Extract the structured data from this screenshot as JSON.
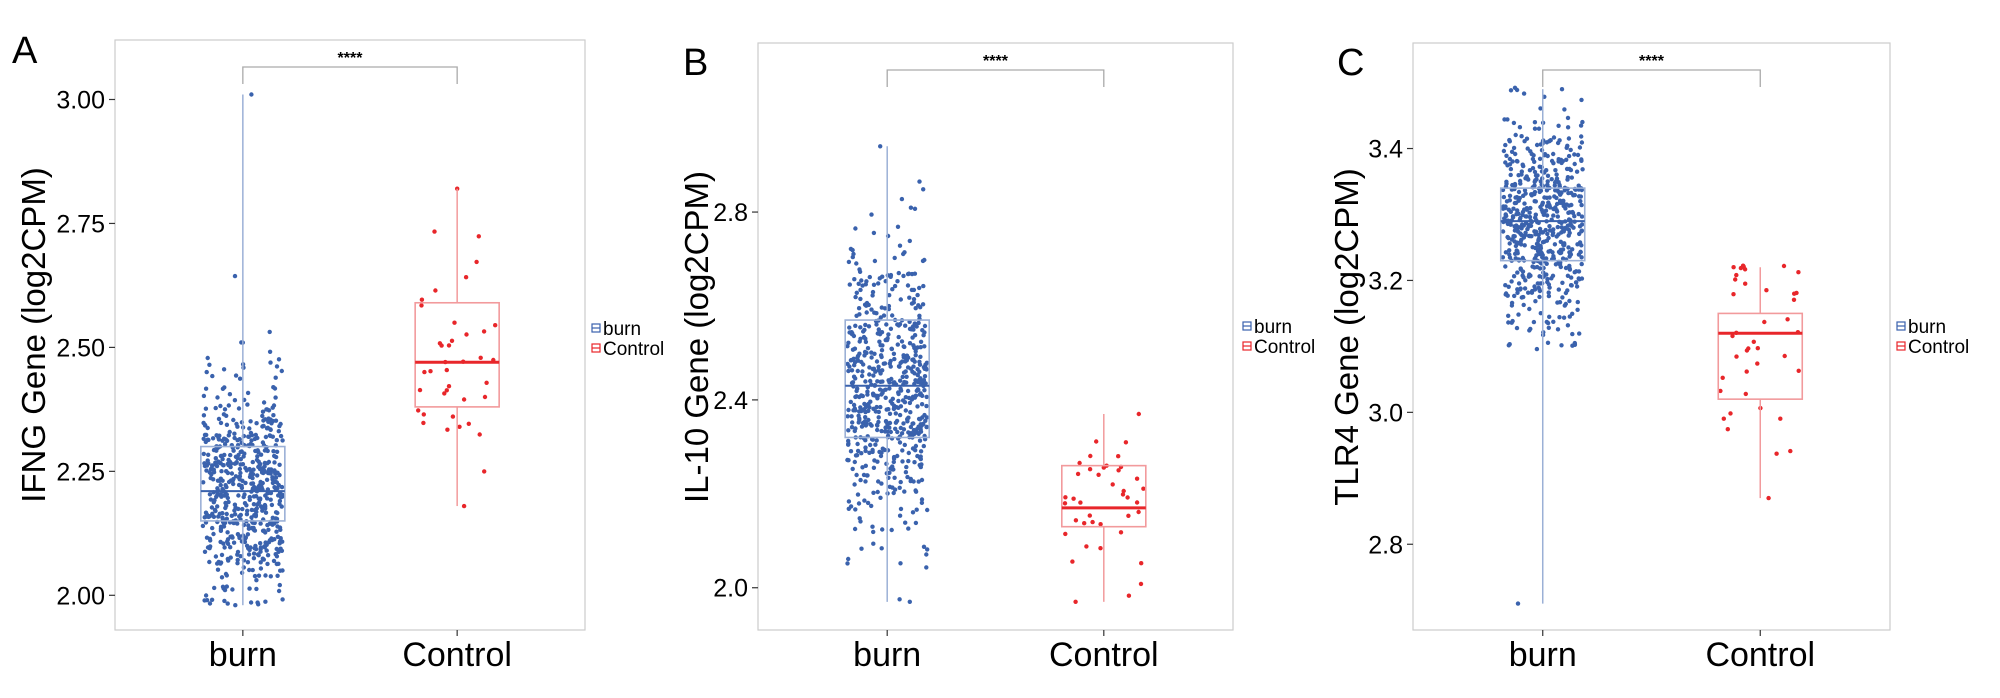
{
  "colors": {
    "burn": "#3a62ad",
    "control": "#e8262a",
    "burn_box": "#9bb0d6",
    "control_box": "#f29a9c",
    "bracket": "#aaaaaa",
    "frame": "#cccccc"
  },
  "chart_data": [
    {
      "type": "box",
      "panel_label": "A",
      "title": "",
      "xlabel": "",
      "ylabel": "IFNG Gene (log2CPM)",
      "categories": [
        "burn",
        "Control"
      ],
      "ylim": [
        1.93,
        3.12
      ],
      "yticks": [
        2.0,
        2.25,
        2.5,
        2.75,
        3.0
      ],
      "ytick_labels": [
        "2.00",
        "2.25",
        "2.50",
        "2.75",
        "3.00"
      ],
      "significance": "****",
      "legend": {
        "position": "right",
        "entries": [
          "burn",
          "Control"
        ]
      },
      "series": [
        {
          "name": "burn",
          "q1": 2.15,
          "median": 2.21,
          "q3": 2.3,
          "whisker_low": 1.98,
          "whisker_high": 3.01,
          "points_n": 600,
          "spread": 0.11
        },
        {
          "name": "Control",
          "q1": 2.38,
          "median": 2.47,
          "q3": 2.59,
          "whisker_low": 2.18,
          "whisker_high": 2.82,
          "points_n": 40,
          "spread": 0.14
        }
      ]
    },
    {
      "type": "box",
      "panel_label": "B",
      "title": "",
      "xlabel": "",
      "ylabel": "IL-10 Gene (log2CPM)",
      "categories": [
        "burn",
        "Control"
      ],
      "ylim": [
        1.91,
        3.16
      ],
      "yticks": [
        2.0,
        2.4,
        2.8
      ],
      "ytick_labels": [
        "2.0",
        "2.4",
        "2.8"
      ],
      "significance": "****",
      "legend": {
        "position": "right",
        "entries": [
          "burn",
          "Control"
        ]
      },
      "series": [
        {
          "name": "burn",
          "q1": 2.32,
          "median": 2.43,
          "q3": 2.57,
          "whisker_low": 1.97,
          "whisker_high": 2.94,
          "points_n": 600,
          "spread": 0.16
        },
        {
          "name": "Control",
          "q1": 2.13,
          "median": 2.17,
          "q3": 2.26,
          "whisker_low": 1.97,
          "whisker_high": 2.37,
          "points_n": 40,
          "spread": 0.08
        }
      ]
    },
    {
      "type": "box",
      "panel_label": "C",
      "title": "",
      "xlabel": "",
      "ylabel": "TLR4 Gene (log2CPM)",
      "categories": [
        "burn",
        "Control"
      ],
      "ylim": [
        2.67,
        3.56
      ],
      "yticks": [
        2.8,
        3.0,
        3.2,
        3.4
      ],
      "ytick_labels": [
        "2.8",
        "3.0",
        "3.2",
        "3.4"
      ],
      "significance": "****",
      "legend": {
        "position": "right",
        "entries": [
          "burn",
          "Control"
        ]
      },
      "series": [
        {
          "name": "burn",
          "q1": 3.23,
          "median": 3.29,
          "q3": 3.34,
          "whisker_low": 2.71,
          "whisker_high": 3.49,
          "points_n": 600,
          "spread": 0.08
        },
        {
          "name": "Control",
          "q1": 3.02,
          "median": 3.12,
          "q3": 3.15,
          "whisker_low": 2.87,
          "whisker_high": 3.22,
          "points_n": 40,
          "spread": 0.09
        }
      ]
    }
  ]
}
